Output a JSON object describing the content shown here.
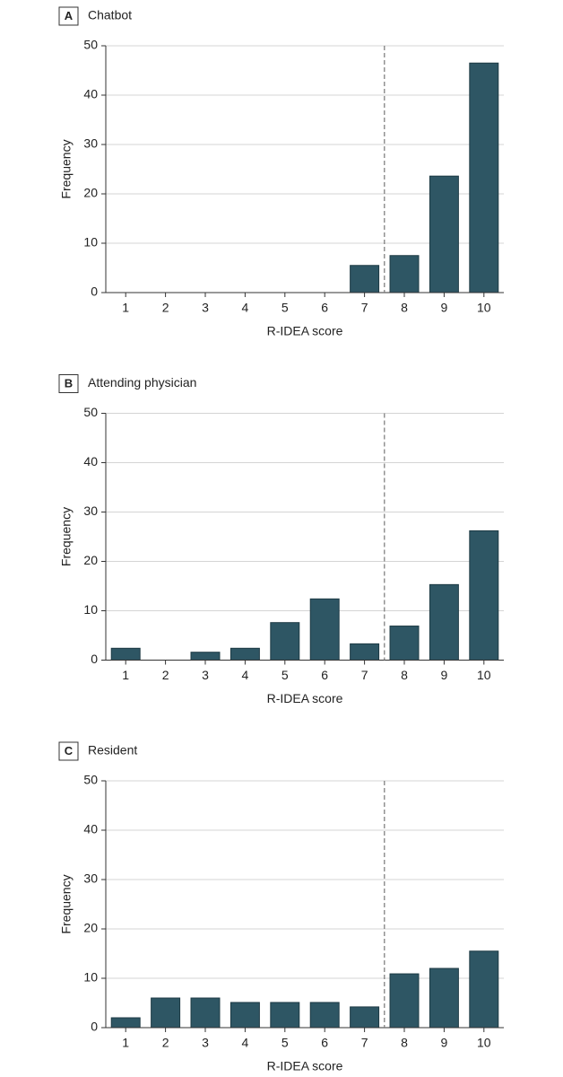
{
  "chart_data": [
    {
      "type": "bar",
      "panel": "A",
      "title": "Chatbot",
      "xlabel": "R-IDEA score",
      "ylabel": "Frequency",
      "x": [
        1,
        2,
        3,
        4,
        5,
        6,
        7,
        8,
        9,
        10
      ],
      "values": [
        0,
        0,
        0,
        0,
        0,
        0,
        5.5,
        7.5,
        23.6,
        46.5
      ],
      "color": "#2e5664",
      "xlim": [
        0.5,
        10.5
      ],
      "xticks": [
        1,
        2,
        3,
        4,
        5,
        6,
        7,
        8,
        9,
        10
      ],
      "ylim": [
        0,
        50
      ],
      "yticks": [
        0,
        10,
        20,
        30,
        40,
        50
      ],
      "grid": true,
      "vline": 7.5
    },
    {
      "type": "bar",
      "panel": "B",
      "title": "Attending physician",
      "xlabel": "R-IDEA score",
      "ylabel": "Frequency",
      "x": [
        1,
        2,
        3,
        4,
        5,
        6,
        7,
        8,
        9,
        10
      ],
      "values": [
        2.4,
        0,
        1.6,
        2.4,
        7.6,
        12.4,
        3.3,
        6.9,
        15.3,
        26.2
      ],
      "color": "#2e5664",
      "xlim": [
        0.5,
        10.5
      ],
      "xticks": [
        1,
        2,
        3,
        4,
        5,
        6,
        7,
        8,
        9,
        10
      ],
      "ylim": [
        0,
        50
      ],
      "yticks": [
        0,
        10,
        20,
        30,
        40,
        50
      ],
      "grid": true,
      "vline": 7.5
    },
    {
      "type": "bar",
      "panel": "C",
      "title": "Resident",
      "xlabel": "R-IDEA score",
      "ylabel": "Frequency",
      "x": [
        1,
        2,
        3,
        4,
        5,
        6,
        7,
        8,
        9,
        10
      ],
      "values": [
        2,
        6,
        6,
        5.1,
        5.1,
        5.1,
        4.2,
        10.9,
        12,
        15.5
      ],
      "color": "#2e5664",
      "xlim": [
        0.5,
        10.5
      ],
      "xticks": [
        1,
        2,
        3,
        4,
        5,
        6,
        7,
        8,
        9,
        10
      ],
      "ylim": [
        0,
        50
      ],
      "yticks": [
        0,
        10,
        20,
        30,
        40,
        50
      ],
      "grid": true,
      "vline": 7.5
    }
  ]
}
